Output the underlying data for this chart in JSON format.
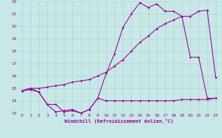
{
  "xlabel": "Windchill (Refroidissement éolien,°C)",
  "xlim": [
    -0.5,
    23.5
  ],
  "ylim": [
    13,
    22
  ],
  "yticks": [
    13,
    14,
    15,
    16,
    17,
    18,
    19,
    20,
    21,
    22
  ],
  "xticks": [
    0,
    1,
    2,
    3,
    4,
    5,
    6,
    7,
    8,
    9,
    10,
    11,
    12,
    13,
    14,
    15,
    16,
    17,
    18,
    19,
    20,
    21,
    22,
    23
  ],
  "bg_color": "#c8e8e8",
  "line_color": "#990099",
  "grid_color": "#aacccc",
  "line1_x": [
    0,
    1,
    2,
    3,
    4,
    5,
    6,
    7,
    8,
    9,
    10,
    11,
    12,
    13,
    14,
    15,
    16,
    17,
    18,
    19,
    20,
    21,
    22,
    23
  ],
  "line1_y": [
    14.8,
    15.0,
    14.7,
    13.7,
    13.1,
    13.2,
    13.3,
    13.0,
    13.3,
    14.2,
    16.2,
    17.8,
    19.9,
    21.0,
    21.9,
    21.5,
    21.8,
    21.2,
    21.2,
    20.8,
    17.5,
    17.5,
    14.2,
    14.2
  ],
  "line2_x": [
    0,
    1,
    2,
    3,
    4,
    5,
    6,
    7,
    8,
    9,
    10,
    11,
    12,
    13,
    14,
    15,
    16,
    17,
    18,
    19,
    20,
    21,
    22,
    23
  ],
  "line2_y": [
    14.8,
    15.0,
    15.0,
    15.1,
    15.2,
    15.3,
    15.5,
    15.6,
    15.7,
    16.0,
    16.3,
    16.8,
    17.3,
    18.0,
    18.7,
    19.2,
    19.8,
    20.2,
    20.5,
    20.8,
    20.8,
    21.2,
    21.3,
    15.9
  ],
  "line3_x": [
    0,
    1,
    2,
    3,
    4,
    5,
    6,
    7,
    8,
    9,
    10,
    11,
    12,
    13,
    14,
    15,
    16,
    17,
    18,
    19,
    20,
    21,
    22,
    23
  ],
  "line3_y": [
    14.8,
    14.9,
    14.7,
    13.7,
    13.7,
    13.1,
    13.2,
    13.0,
    13.3,
    14.2,
    14.0,
    14.0,
    14.0,
    14.0,
    14.0,
    14.0,
    14.0,
    14.0,
    14.0,
    14.1,
    14.1,
    14.1,
    14.1,
    14.2
  ],
  "marker": "D",
  "markersize": 1.8,
  "linewidth": 0.8
}
